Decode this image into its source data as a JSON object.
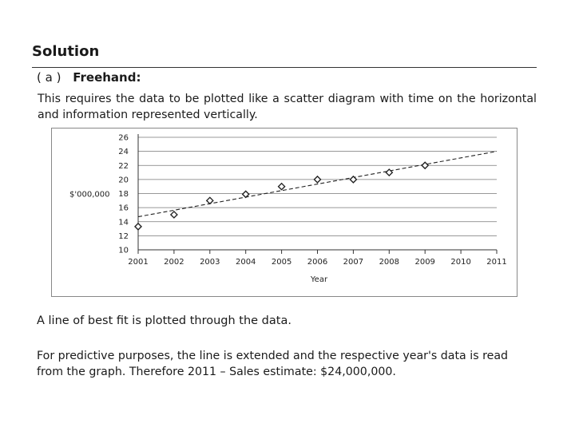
{
  "heading": "Solution",
  "part": {
    "label": "( a )",
    "title": "Freehand:"
  },
  "paragraph_1": "This requires the data to be plotted like a scatter diagram with time on the horizontal and information represented vertically.",
  "paragraph_2": "A line of best fit is plotted through the data.",
  "paragraph_3": "For predictive purposes, the line is extended and the respective year's data is read from the graph. Therefore 2011 – Sales estimate: $24,000,000.",
  "chart_data": {
    "type": "scatter",
    "title": "",
    "xlabel": "Year",
    "ylabel": "$'000,000",
    "x_ticks": [
      "2001",
      "2002",
      "2003",
      "2004",
      "2005",
      "2006",
      "2007",
      "2008",
      "2009",
      "2010",
      "2011"
    ],
    "y_ticks": [
      "26",
      "24",
      "22",
      "20",
      "18",
      "16",
      "14",
      "12",
      "10"
    ],
    "xlim": [
      2001,
      2011
    ],
    "ylim": [
      10,
      26
    ],
    "grid": true,
    "series": [
      {
        "x": [
          2001,
          2002,
          2003,
          2004,
          2005,
          2006,
          2007,
          2008,
          2009
        ],
        "y": [
          13.3,
          15.0,
          17.0,
          17.9,
          19.0,
          20.0,
          20.0,
          21.0,
          22.0
        ]
      }
    ],
    "trendline": {
      "x": [
        2001,
        2011
      ],
      "y": [
        14.7,
        24.0
      ]
    }
  }
}
